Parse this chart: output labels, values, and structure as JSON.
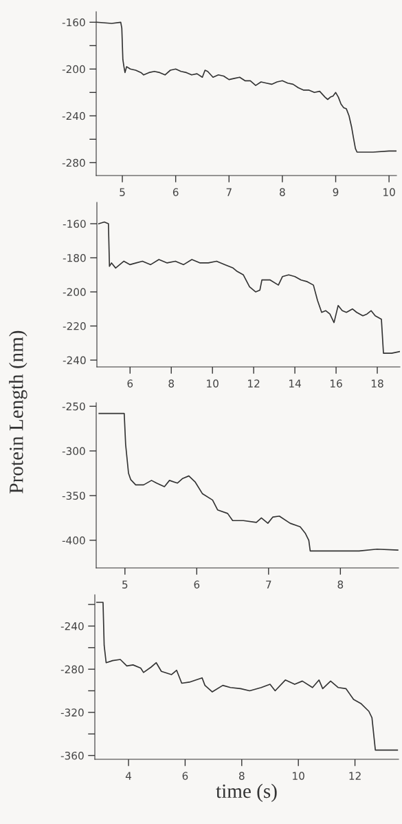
{
  "chart_data": [
    {
      "type": "line",
      "xlim": [
        4.51,
        10.14
      ],
      "xticks": [
        5,
        6,
        7,
        8,
        9,
        10
      ],
      "ylim": [
        -291,
        -151
      ],
      "yticks": [
        -160,
        {
          "value": -180,
          "label": null
        },
        -200,
        {
          "value": -220,
          "label": null
        },
        -240,
        {
          "value": -260,
          "label": null
        },
        -280
      ],
      "grid": false,
      "legend": false,
      "marker": "none",
      "line_style": "solid",
      "series": [
        {
          "color": "#333333",
          "x": [
            4.52,
            4.8,
            4.97,
            4.99,
            5.01,
            5.03,
            5.05,
            5.08,
            5.15,
            5.25,
            5.35,
            5.4,
            5.5,
            5.6,
            5.7,
            5.8,
            5.9,
            6.0,
            6.1,
            6.2,
            6.3,
            6.4,
            6.5,
            6.55,
            6.6,
            6.7,
            6.8,
            6.9,
            7.0,
            7.1,
            7.2,
            7.3,
            7.4,
            7.5,
            7.6,
            7.7,
            7.8,
            7.9,
            8.0,
            8.1,
            8.2,
            8.3,
            8.4,
            8.5,
            8.6,
            8.7,
            8.8,
            8.85,
            8.9,
            8.95,
            9.0,
            9.05,
            9.1,
            9.15,
            9.2,
            9.25,
            9.3,
            9.33,
            9.37,
            9.4,
            9.7,
            10.0,
            10.13
          ],
          "values": [
            -160,
            -161,
            -160,
            -165,
            -192,
            -198,
            -203,
            -198,
            -200,
            -201,
            -203,
            -205,
            -203,
            -202,
            -203,
            -205,
            -201,
            -200,
            -202,
            -203,
            -205,
            -204,
            -207,
            -201,
            -202,
            -207,
            -205,
            -206,
            -209,
            -208,
            -207,
            -210,
            -210,
            -214,
            -211,
            -212,
            -213,
            -211,
            -210,
            -212,
            -213,
            -216,
            -218,
            -218,
            -220,
            -219,
            -224,
            -226,
            -224,
            -223,
            -220,
            -224,
            -230,
            -233,
            -234,
            -240,
            -250,
            -258,
            -268,
            -271,
            -271,
            -270,
            -270
          ]
        }
      ]
    },
    {
      "type": "line",
      "xlim": [
        4.39,
        19.1
      ],
      "xticks": [
        6,
        8,
        10,
        12,
        14,
        16,
        18
      ],
      "ylim": [
        -244,
        -147.5
      ],
      "yticks": [
        -160,
        -180,
        -200,
        -220,
        -240
      ],
      "grid": false,
      "legend": false,
      "marker": "none",
      "line_style": "solid",
      "series": [
        {
          "color": "#333333",
          "x": [
            4.48,
            4.75,
            4.95,
            5.0,
            5.1,
            5.3,
            5.5,
            5.7,
            6.0,
            6.3,
            6.6,
            7.0,
            7.4,
            7.8,
            8.2,
            8.6,
            9.0,
            9.4,
            9.8,
            10.2,
            10.6,
            11.0,
            11.2,
            11.5,
            11.8,
            12.1,
            12.3,
            12.4,
            12.8,
            13.2,
            13.4,
            13.7,
            14.0,
            14.3,
            14.6,
            14.9,
            15.1,
            15.3,
            15.5,
            15.7,
            15.9,
            16.1,
            16.3,
            16.5,
            16.8,
            17.0,
            17.3,
            17.5,
            17.7,
            17.9,
            18.2,
            18.3,
            18.7,
            19.1
          ],
          "values": [
            -160,
            -159,
            -160,
            -185,
            -183,
            -186,
            -184,
            -182,
            -184,
            -183,
            -182,
            -184,
            -181,
            -183,
            -182,
            -184,
            -181,
            -183,
            -183,
            -182,
            -184,
            -186,
            -188,
            -190,
            -197,
            -200,
            -199,
            -193,
            -193,
            -196,
            -191,
            -190,
            -191,
            -193,
            -194,
            -196,
            -205,
            -212,
            -211,
            -213,
            -218,
            -208,
            -211,
            -212,
            -210,
            -212,
            -214,
            -213,
            -211,
            -214,
            -216,
            -236,
            -236,
            -235
          ]
        }
      ]
    },
    {
      "type": "line",
      "ylabel": "Protein Length (nm)",
      "xlim": [
        4.6,
        8.81
      ],
      "xticks": [
        5,
        6,
        7,
        8
      ],
      "ylim": [
        -431,
        -246
      ],
      "yticks": [
        -250,
        -300,
        -350,
        -400
      ],
      "grid": false,
      "legend": false,
      "marker": "none",
      "line_style": "solid",
      "series": [
        {
          "color": "#333333",
          "x": [
            4.64,
            4.8,
            4.99,
            5.01,
            5.05,
            5.08,
            5.15,
            5.26,
            5.37,
            5.44,
            5.55,
            5.62,
            5.73,
            5.8,
            5.89,
            5.98,
            6.08,
            6.22,
            6.29,
            6.43,
            6.5,
            6.65,
            6.83,
            6.9,
            6.99,
            7.06,
            7.15,
            7.3,
            7.44,
            7.51,
            7.56,
            7.58,
            7.9,
            8.26,
            8.51,
            8.8
          ],
          "values": [
            -258,
            -258,
            -258,
            -293,
            -325,
            -332,
            -338,
            -338,
            -333,
            -336,
            -340,
            -333,
            -336,
            -331,
            -328,
            -335,
            -348,
            -355,
            -366,
            -370,
            -378,
            -378,
            -380,
            -375,
            -381,
            -374,
            -373,
            -381,
            -385,
            -392,
            -400,
            -412,
            -412,
            -412,
            -410,
            -411
          ]
        }
      ]
    },
    {
      "type": "line",
      "xlabel": "time (s)",
      "xlim": [
        2.81,
        13.54
      ],
      "xticks": [
        4,
        6,
        8,
        10,
        12
      ],
      "ylim": [
        -363.5,
        -211
      ],
      "yticks": [
        {
          "value": -220,
          "label": null
        },
        -240,
        {
          "value": -260,
          "label": null
        },
        -280,
        {
          "value": -300,
          "label": null
        },
        -320,
        {
          "value": -340,
          "label": null
        },
        -360
      ],
      "grid": false,
      "legend": false,
      "marker": "none",
      "line_style": "solid",
      "series": [
        {
          "color": "#333333",
          "x": [
            2.88,
            3.1,
            3.14,
            3.21,
            3.44,
            3.71,
            3.94,
            4.16,
            4.43,
            4.53,
            4.8,
            4.98,
            5.16,
            5.52,
            5.7,
            5.88,
            6.15,
            6.6,
            6.7,
            6.96,
            7.33,
            7.6,
            7.96,
            8.28,
            8.69,
            9.0,
            9.18,
            9.54,
            9.87,
            10.14,
            10.5,
            10.73,
            10.86,
            11.14,
            11.41,
            11.68,
            11.95,
            12.22,
            12.49,
            12.6,
            12.72,
            13.5
          ],
          "values": [
            -218,
            -218,
            -258,
            -274,
            -272,
            -271,
            -277,
            -276,
            -279,
            -283,
            -278,
            -274,
            -282,
            -285,
            -281,
            -293,
            -292,
            -288,
            -295,
            -301,
            -295,
            -297,
            -298,
            -300,
            -297,
            -294,
            -300,
            -290,
            -294,
            -291,
            -297,
            -290,
            -298,
            -291,
            -297,
            -298,
            -308,
            -312,
            -319,
            -325,
            -355,
            -355
          ]
        }
      ]
    }
  ]
}
